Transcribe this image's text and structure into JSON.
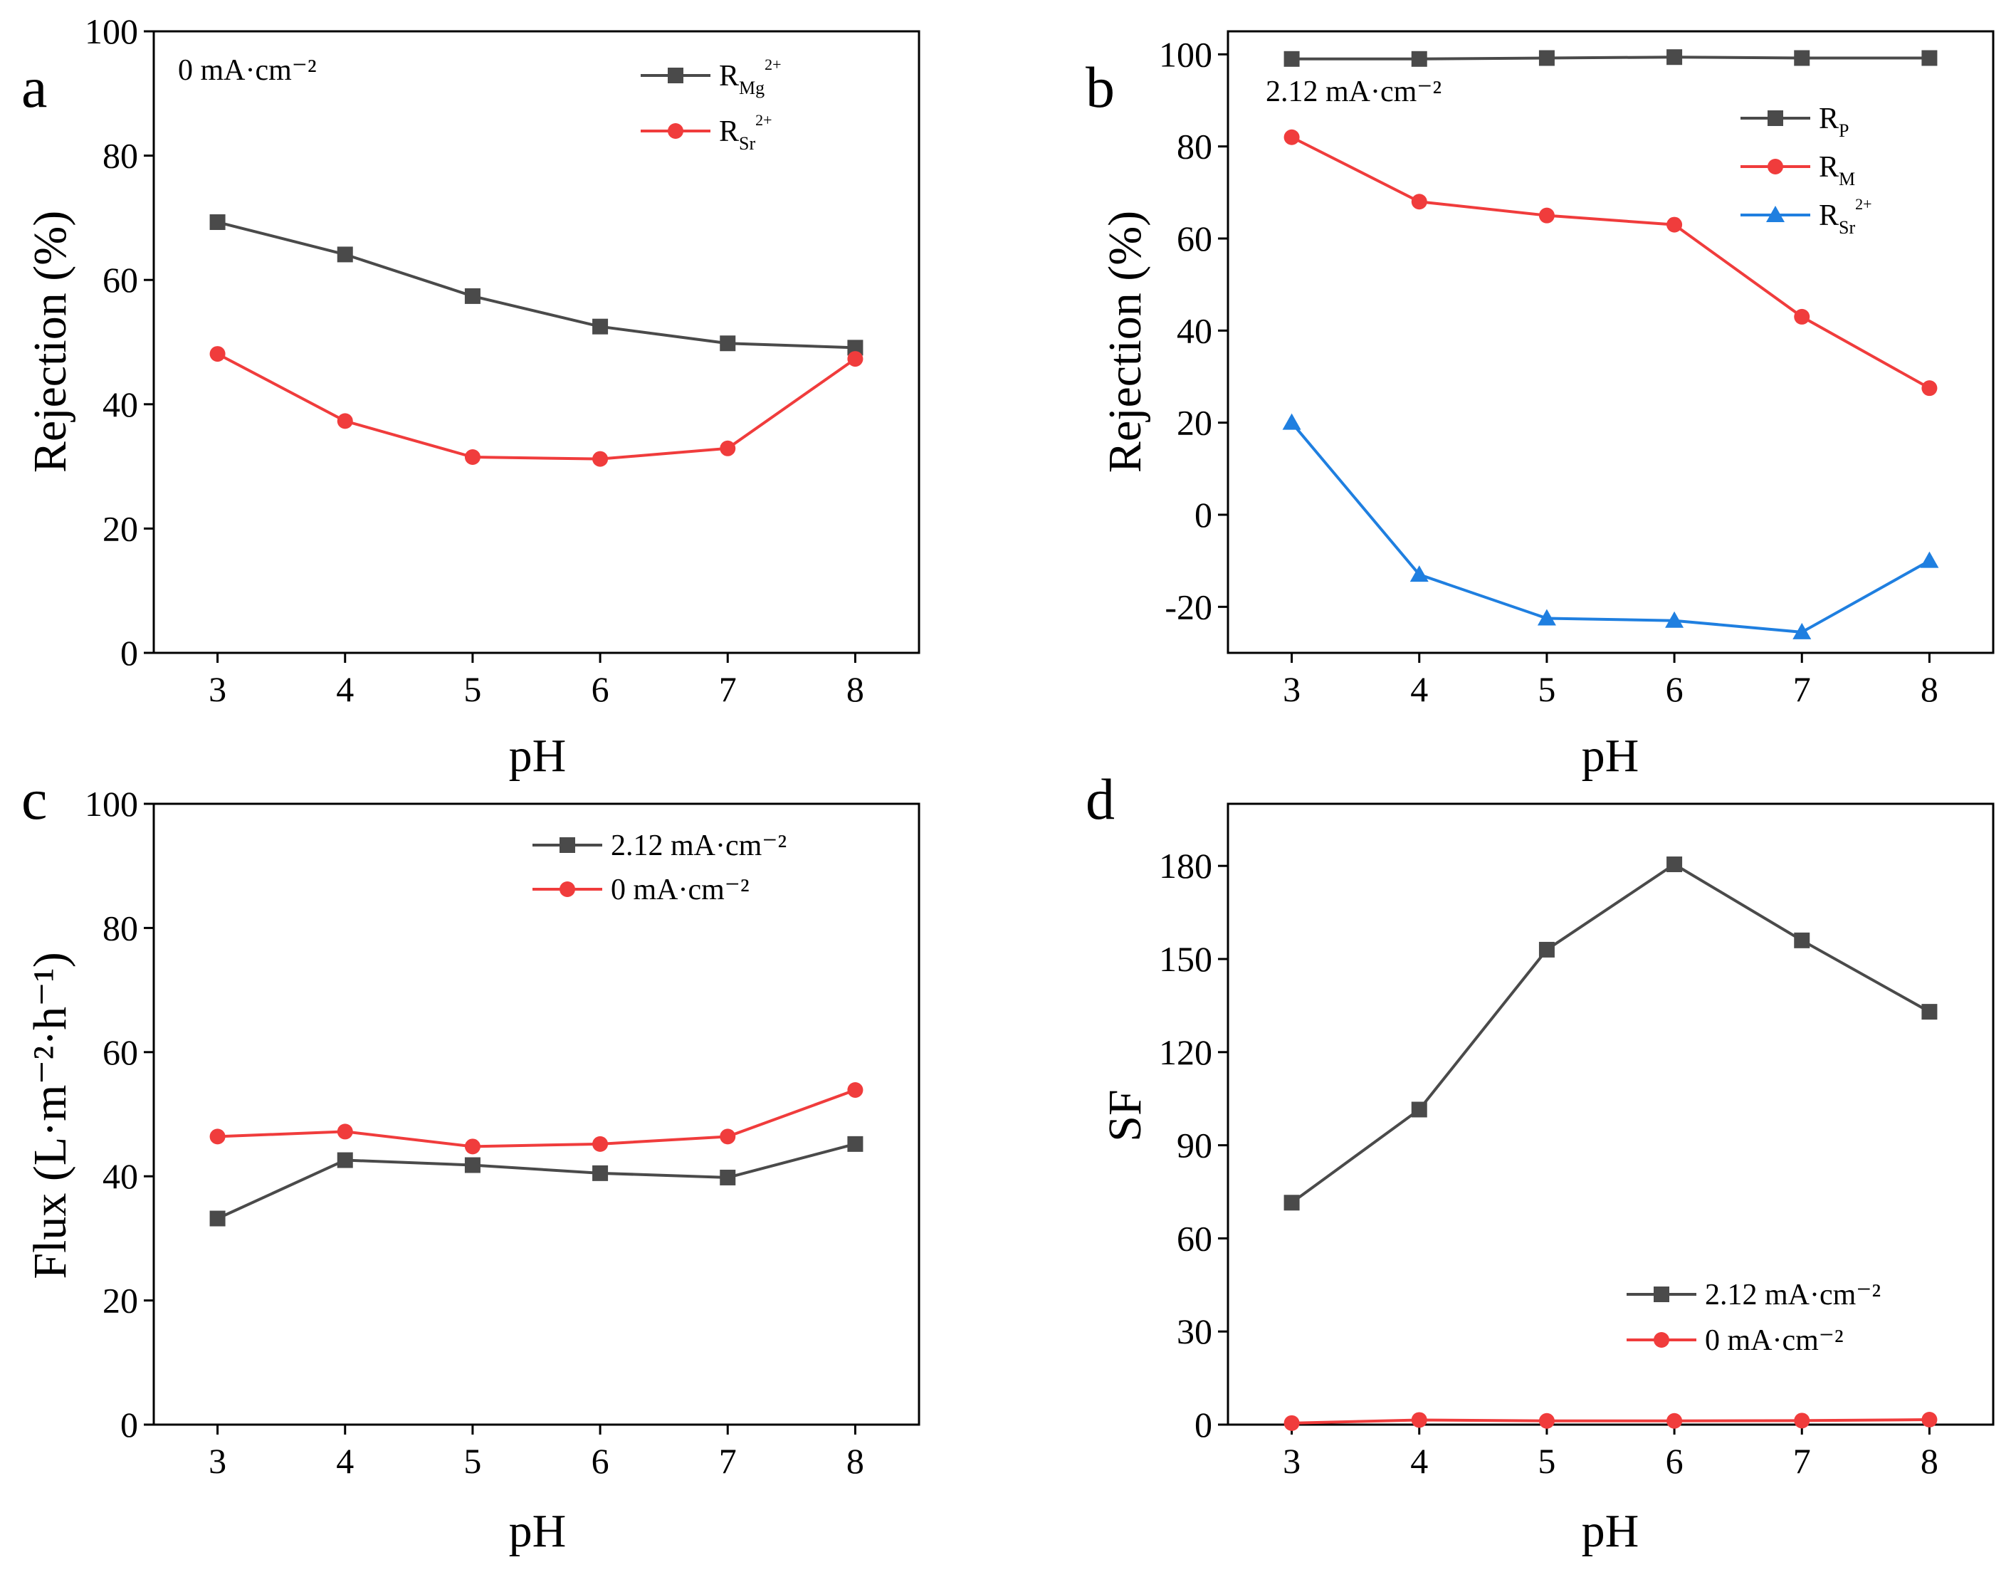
{
  "figure": {
    "series_colors": {
      "black": "#4a4a4a",
      "red": "#f03c3c",
      "blue": "#1f7fe0"
    }
  },
  "chart_data": [
    {
      "panel": "a",
      "type": "line",
      "title": "",
      "annotation": "0 mA·cm⁻²",
      "xlabel": "pH",
      "ylabel": "Rejection (%)",
      "x": [
        3,
        4,
        5,
        6,
        7,
        8
      ],
      "x_ticks": [
        "3",
        "4",
        "5",
        "6",
        "7",
        "8"
      ],
      "xlim": [
        2.5,
        8.5
      ],
      "ylim": [
        0,
        100
      ],
      "y_ticks": [
        "0",
        "20",
        "40",
        "60",
        "80",
        "100"
      ],
      "legend_position": "top-right",
      "series": [
        {
          "name": "R_Mg2+",
          "legend_main": "R",
          "legend_sub": "Mg",
          "legend_sup": "2+",
          "color": "#4a4a4a",
          "marker": "square",
          "values": [
            69.3,
            64.1,
            57.4,
            52.5,
            49.8,
            49.1
          ]
        },
        {
          "name": "R_Sr2+",
          "legend_main": "R",
          "legend_sub": "Sr",
          "legend_sup": "2+",
          "color": "#f03c3c",
          "marker": "circle",
          "values": [
            48.1,
            37.3,
            31.5,
            31.2,
            32.9,
            47.3
          ]
        }
      ]
    },
    {
      "panel": "b",
      "type": "line",
      "title": "",
      "annotation": "2.12 mA·cm⁻²",
      "xlabel": "pH",
      "ylabel": "Rejection (%)",
      "x": [
        3,
        4,
        5,
        6,
        7,
        8
      ],
      "x_ticks": [
        "3",
        "4",
        "5",
        "6",
        "7",
        "8"
      ],
      "xlim": [
        2.5,
        8.5
      ],
      "ylim": [
        -30,
        105
      ],
      "y_ticks": [
        "-20",
        "0",
        "20",
        "40",
        "60",
        "80",
        "100"
      ],
      "legend_position": "top-right",
      "series": [
        {
          "name": "R_P",
          "legend_main": "R",
          "legend_sub": "P",
          "legend_sup": "",
          "color": "#4a4a4a",
          "marker": "square",
          "values": [
            99.0,
            99.0,
            99.2,
            99.4,
            99.2,
            99.2
          ]
        },
        {
          "name": "R_M",
          "legend_main": "R",
          "legend_sub": "M",
          "legend_sup": "",
          "color": "#f03c3c",
          "marker": "circle",
          "values": [
            82.0,
            68.0,
            65.0,
            63.0,
            43.0,
            27.5
          ]
        },
        {
          "name": "R_Sr2+",
          "legend_main": "R",
          "legend_sub": "Sr",
          "legend_sup": "2+",
          "color": "#1f7fe0",
          "marker": "triangle",
          "values": [
            20.0,
            -13.0,
            -22.5,
            -23.0,
            -25.5,
            -10.0
          ]
        }
      ]
    },
    {
      "panel": "c",
      "type": "line",
      "title": "",
      "annotation": "",
      "xlabel": "pH",
      "ylabel": "Flux (L·m⁻²·h⁻¹)",
      "x": [
        3,
        4,
        5,
        6,
        7,
        8
      ],
      "x_ticks": [
        "3",
        "4",
        "5",
        "6",
        "7",
        "8"
      ],
      "xlim": [
        2.5,
        8.5
      ],
      "ylim": [
        0,
        100
      ],
      "y_ticks": [
        "0",
        "20",
        "40",
        "60",
        "80",
        "100"
      ],
      "legend_position": "top-right",
      "series": [
        {
          "name": "2.12 mA·cm⁻²",
          "legend_main": "2.12 mA·cm⁻²",
          "legend_sub": "",
          "legend_sup": "",
          "color": "#4a4a4a",
          "marker": "square",
          "values": [
            33.2,
            42.6,
            41.8,
            40.5,
            39.8,
            45.2
          ]
        },
        {
          "name": "0 mA·cm⁻²",
          "legend_main": "0 mA·cm⁻²",
          "legend_sub": "",
          "legend_sup": "",
          "color": "#f03c3c",
          "marker": "circle",
          "values": [
            46.4,
            47.2,
            44.8,
            45.2,
            46.4,
            53.9
          ]
        }
      ]
    },
    {
      "panel": "d",
      "type": "line",
      "title": "",
      "annotation": "",
      "xlabel": "pH",
      "ylabel": "SF",
      "x": [
        3,
        4,
        5,
        6,
        7,
        8
      ],
      "x_ticks": [
        "3",
        "4",
        "5",
        "6",
        "7",
        "8"
      ],
      "xlim": [
        2.5,
        8.5
      ],
      "ylim": [
        0,
        200
      ],
      "y_ticks": [
        "0",
        "30",
        "60",
        "90",
        "120",
        "150",
        "180"
      ],
      "legend_position": "bottom-right",
      "series": [
        {
          "name": "2.12 mA·cm⁻²",
          "legend_main": "2.12 mA·cm⁻²",
          "legend_sub": "",
          "legend_sup": "",
          "color": "#4a4a4a",
          "marker": "square",
          "values": [
            71.5,
            101.5,
            153.0,
            180.5,
            156.0,
            133.0
          ]
        },
        {
          "name": "0 mA·cm⁻²",
          "legend_main": "0 mA·cm⁻²",
          "legend_sub": "",
          "legend_sup": "",
          "color": "#f03c3c",
          "marker": "circle",
          "values": [
            0.5,
            1.5,
            1.2,
            1.2,
            1.3,
            1.6
          ]
        }
      ]
    }
  ]
}
